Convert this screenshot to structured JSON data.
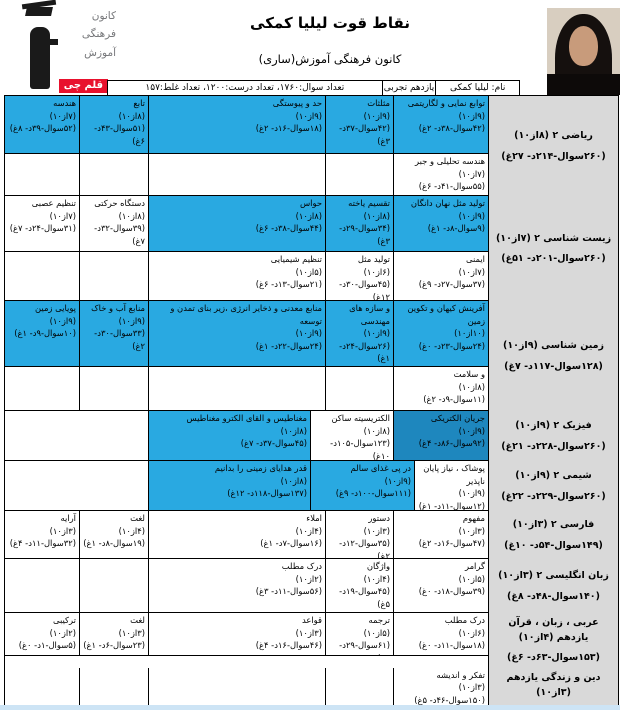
{
  "header": {
    "title": "نقاط قوت لیلیا کمکی",
    "subtitle": "کانون فرهنگی آموزش(ساری)",
    "info_name": "نام: لیلیا کمکی",
    "info_grade": "یازدهم تجربی",
    "info_totals": "تعداد سوال:۱۷۶۰، تعداد درست:۱۲۰۰، تعداد غلط:۱۵۷",
    "logo_lines": [
      "کانون",
      "فرهنگی",
      "آموزش"
    ],
    "logo_badge": "قلم چی"
  },
  "colors": {
    "topic_highlight": "#29A9E1",
    "topic_highlight_dark": "#1E87BE",
    "subject_bg": "#D9D9D9",
    "badge_red": "#E8112D",
    "border": "#000000"
  },
  "rows": [
    {
      "subject": {
        "name": "ریاضی ۲ (۸از۱۰)",
        "stats": "(۲۶۰سوال-۲۱۴د- ۲۷غ)"
      },
      "subrows": [
        [
          {
            "col": "a",
            "bg": "cyan",
            "title": "توابع نمایی و لگاریتمی",
            "score": "(۹از۱۰)",
            "stats": "(۴۲سوال-۳۸د- ۲غ)"
          },
          {
            "col": "b",
            "bg": "cyan",
            "title": "مثلثات",
            "score": "(۹از۱۰)",
            "stats": "(۴۲سوال-۳۷د- ۳غ)"
          },
          {
            "col": "c",
            "bg": "cyan",
            "title": "حد و پیوستگی",
            "score": "(۹از۱۰)",
            "stats": "(۱۸سوال-۱۶د- ۲غ)"
          },
          {
            "col": "d",
            "bg": "cyan",
            "title": "تابع",
            "score": "(۸از۱۰)",
            "stats": "(۵۱سوال-۴۳د- ۶غ)"
          },
          {
            "col": "e",
            "bg": "cyan",
            "title": "هندسه",
            "score": "(۷از۱۰)",
            "stats": "(۵۲سوال-۳۹د- ۸غ)"
          }
        ],
        [
          {
            "col": "a",
            "bg": "white",
            "title": "هندسه تحلیلی و جبر",
            "score": "(۷از۱۰)",
            "stats": "(۵۵سوال-۴۱د- ۶غ)"
          },
          {
            "col": "b",
            "empty": true
          },
          {
            "col": "c",
            "empty": true
          },
          {
            "col": "d",
            "empty": true
          },
          {
            "col": "e",
            "empty": true
          }
        ]
      ]
    },
    {
      "subject": {
        "name": "زیست شناسی ۲ (۷از۱۰)",
        "stats": "(۲۶۰سوال-۲۰۱د- ۵۱غ)"
      },
      "subrows": [
        [
          {
            "col": "a",
            "bg": "cyan",
            "title": "تولید مثل نهان دانگان",
            "score": "(۹از۱۰)",
            "stats": "(۹سوال-۸د- ۱غ)"
          },
          {
            "col": "b",
            "bg": "cyan",
            "title": "تقسیم یاخته",
            "score": "(۸از۱۰)",
            "stats": "(۳۴سوال-۲۹د- ۳غ)"
          },
          {
            "col": "c",
            "bg": "cyan",
            "title": "حواس",
            "score": "(۸از۱۰)",
            "stats": "(۴۴سوال-۳۸د- ۶غ)"
          },
          {
            "col": "d",
            "bg": "white",
            "title": "دستگاه حرکتی",
            "score": "(۸از۱۰)",
            "stats": "(۳۹سوال-۳۲د- ۷غ)"
          },
          {
            "col": "e",
            "bg": "white",
            "title": "تنظیم عصبی",
            "score": "(۷از۱۰)",
            "stats": "(۳۱سوال-۲۴د- ۷غ)"
          }
        ],
        [
          {
            "col": "a",
            "bg": "white",
            "title": "ایمنی",
            "score": "(۷از۱۰)",
            "stats": "(۳۷سوال-۲۷د- ۹غ)"
          },
          {
            "col": "b",
            "bg": "white",
            "title": "تولید مثل",
            "score": "(۶از۱۰)",
            "stats": "(۴۵سوال-۳۰د- ۱۲غ)"
          },
          {
            "col": "c",
            "bg": "white",
            "title": "تنظیم شیمیایی",
            "score": "(۵از۱۰)",
            "stats": "(۲۱سوال-۱۳د- ۶غ)"
          },
          {
            "col": "d",
            "empty": true
          },
          {
            "col": "e",
            "empty": true
          }
        ]
      ]
    },
    {
      "subject": {
        "name": "زمین شناسی (۹از۱۰)",
        "stats": "(۱۲۸سوال-۱۱۷د- ۷غ)"
      },
      "subrows": [
        [
          {
            "col": "a",
            "bg": "cyan",
            "title": "آفرینش کیهان و تکوین زمین",
            "score": "(۱۰از۱۰)",
            "stats": "(۲۴سوال-۲۳د- ۰غ)"
          },
          {
            "col": "b",
            "bg": "cyan",
            "title": "و سازه های مهندسی",
            "score": "(۹از۱۰)",
            "stats": "(۲۶سوال-۲۴د- ۱غ)"
          },
          {
            "col": "c",
            "bg": "cyan",
            "title": "منابع معدنی و ذخایر انرژی ،زیر بنای تمدن و توسعه",
            "score": "(۹از۱۰)",
            "stats": "(۲۴سوال-۲۲د- ۱غ)"
          },
          {
            "col": "d",
            "bg": "cyan",
            "title": "منابع آب و خاک",
            "score": "(۹از۱۰)",
            "stats": "(۳۳سوال-۳۰د- ۲غ)"
          },
          {
            "col": "e",
            "bg": "cyan",
            "title": "پویایی زمین",
            "score": "(۹از۱۰)",
            "stats": "(۱۰سوال-۹د- ۱غ)"
          }
        ],
        [
          {
            "col": "a",
            "bg": "white",
            "title": "و سلامت",
            "score": "(۸از۱۰)",
            "stats": "(۱۱سوال-۹د- ۲غ)"
          },
          {
            "col": "b",
            "empty": true
          },
          {
            "col": "c",
            "empty": true
          },
          {
            "col": "d",
            "empty": true
          },
          {
            "col": "e",
            "empty": true
          }
        ]
      ]
    },
    {
      "subject": {
        "name": "فیزیک ۲ (۹از۱۰)",
        "stats": "(۲۶۰سوال-۲۲۸د- ۲۱غ)"
      },
      "subrows": [
        [
          {
            "col": "a",
            "bg": "dark",
            "title": "جریان الکتریکی",
            "score": "(۹از۱۰)",
            "stats": "(۹۲سوال-۸۶د- ۴غ)"
          },
          {
            "col": "b4",
            "bg": "white",
            "title": "الکتریسیته ساکن",
            "score": "(۸از۱۰)",
            "stats": "(۱۲۳سوال-۱۰۵د- ۱۰غ)"
          },
          {
            "col": "c4",
            "bg": "cyan",
            "title": "مغناطیس و القای الکترو مغناطیس",
            "score": "(۸از۱۰)",
            "stats": "(۴۵سوال-۳۷د- ۷غ)"
          },
          {
            "col": "de",
            "empty": true
          }
        ]
      ]
    },
    {
      "subject": {
        "name": "شیمی ۲ (۹از۱۰)",
        "stats": "(۲۶۰سوال-۲۲۹د- ۲۲غ)"
      },
      "subrows": [
        [
          {
            "col": "a5",
            "bg": "white",
            "title": "پوشاک ، نیاز پایان ناپذیر",
            "score": "(۹از۱۰)",
            "stats": "(۱۲سوال-۱۱د- ۱غ)"
          },
          {
            "col": "b5",
            "bg": "cyan",
            "title": "در پی غذای سالم",
            "score": "(۹از۱۰)",
            "stats": "(۱۱۱سوال-۱۰۰د- ۹غ)"
          },
          {
            "col": "c5",
            "bg": "cyan",
            "title": "قدر هدایای زمینی را بدانیم",
            "score": "(۸از۱۰)",
            "stats": "(۱۳۷سوال-۱۱۸د- ۱۲غ)"
          },
          {
            "col": "de",
            "empty": true
          }
        ]
      ]
    },
    {
      "subject": {
        "name": "فارسی ۲ (۳از۱۰)",
        "stats": "(۱۴۹سوال-۵۴د- ۱۰غ)"
      },
      "subrows": [
        [
          {
            "col": "a",
            "bg": "white",
            "title": "مفهوم",
            "score": "(۳از۱۰)",
            "stats": "(۴۷سوال-۱۶د- ۲غ)"
          },
          {
            "col": "b",
            "bg": "white",
            "title": "دستور",
            "score": "(۳از۱۰)",
            "stats": "(۳۵سوال-۱۲د- ۲غ)"
          },
          {
            "col": "c",
            "bg": "white",
            "title": "املاء",
            "score": "(۴از۱۰)",
            "stats": "(۱۶سوال-۷د- ۱غ)"
          },
          {
            "col": "d",
            "bg": "white",
            "title": "لغت",
            "score": "(۴از۱۰)",
            "stats": "(۱۹سوال-۸د- ۱غ)"
          },
          {
            "col": "e",
            "bg": "white",
            "title": "آرایه",
            "score": "(۳از۱۰)",
            "stats": "(۳۲سوال-۱۱د- ۴غ)"
          }
        ]
      ]
    },
    {
      "subject": {
        "name": "زبان انگلیسی ۲ (۳از۱۰)",
        "stats": "(۱۴۰سوال-۴۸د- ۸غ)"
      },
      "subrows": [
        [
          {
            "col": "a",
            "bg": "white",
            "title": "گرامر",
            "score": "(۵از۱۰)",
            "stats": "(۳۹سوال-۱۸د- ۰غ)"
          },
          {
            "col": "b",
            "bg": "white",
            "title": "واژگان",
            "score": "(۴از۱۰)",
            "stats": "(۴۵سوال-۱۹د- ۵غ)"
          },
          {
            "col": "c",
            "bg": "white",
            "title": "درک مطلب",
            "score": "(۲از۱۰)",
            "stats": "(۵۶سوال-۱۱د- ۳غ)"
          },
          {
            "col": "d",
            "empty": true
          },
          {
            "col": "e",
            "empty": true
          }
        ]
      ]
    },
    {
      "subject": {
        "name": "عربی ، زبان ، قرآن یازدهم (۴از۱۰)",
        "stats": "(۱۵۳سوال-۶۳د- ۶غ)"
      },
      "subrows": [
        [
          {
            "col": "a",
            "bg": "white",
            "title": "درک مطلب",
            "score": "(۶از۱۰)",
            "stats": "(۱۸سوال-۱۱د- ۰غ)"
          },
          {
            "col": "b",
            "bg": "white",
            "title": "ترجمه",
            "score": "(۵از۱۰)",
            "stats": "(۶۱سوال-۲۹د- ۱غ)"
          },
          {
            "col": "c",
            "bg": "white",
            "title": "قواعد",
            "score": "(۳از۱۰)",
            "stats": "(۴۶سوال-۱۶د- ۴غ)"
          },
          {
            "col": "d",
            "bg": "white",
            "title": "لغت",
            "score": "(۳از۱۰)",
            "stats": "(۲۳سوال-۶د- ۱غ)"
          },
          {
            "col": "e",
            "bg": "white",
            "title": "ترکیبی",
            "score": "(۲از۱۰)",
            "stats": "(۵سوال-۱د- ۰غ)"
          }
        ]
      ]
    },
    {
      "subject": {
        "name": "دین و زندگی یازدهم (۳از۱۰)",
        "stats": "(۱۵۰سوال-۴۶د- ۵غ)"
      },
      "subrows": [
        [
          {
            "col": "a",
            "bg": "white",
            "title": "تفکر و اندیشه",
            "score": "(۳از۱۰)",
            "stats": "(۱۵۰سوال-۴۶د- ۵غ)"
          },
          {
            "col": "b",
            "empty": true
          },
          {
            "col": "c",
            "empty": true
          },
          {
            "col": "d",
            "empty": true
          },
          {
            "col": "e",
            "empty": true
          }
        ]
      ]
    }
  ]
}
